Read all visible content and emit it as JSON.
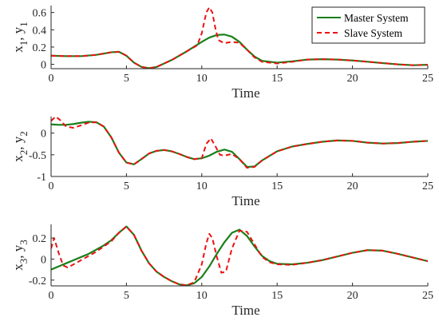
{
  "colors": {
    "master": "#1a7f1a",
    "slave": "#ee1111",
    "axis": "#262626",
    "background": "#ffffff"
  },
  "legend": {
    "placement": "top-right of first subplot",
    "entries": [
      {
        "label": "Master System",
        "color": "#1a7f1a",
        "style": "solid"
      },
      {
        "label": "Slave System",
        "color": "#ee1111",
        "style": "dashed"
      }
    ]
  },
  "chart_data": [
    {
      "type": "line",
      "ylabel": "x1, y1",
      "ylabel_main": [
        "x",
        "y"
      ],
      "ylabel_sub": [
        "1",
        "1"
      ],
      "xlabel": "Time",
      "xlim": [
        0,
        25
      ],
      "ylim": [
        -0.05,
        0.68
      ],
      "xticks": [
        0,
        5,
        10,
        15,
        20,
        25
      ],
      "yticks": [
        0,
        0.2,
        0.4,
        0.6
      ],
      "ytick_labels": [
        "0",
        "0.2",
        "0.4",
        "0.6"
      ],
      "grid": false,
      "series": [
        {
          "name": "Master System",
          "color": "#1a7f1a",
          "dash": "solid",
          "x": [
            0,
            1,
            2,
            3,
            4,
            4.5,
            5,
            5.5,
            6,
            6.5,
            7,
            8,
            9,
            10,
            10.5,
            11,
            11.5,
            12,
            12.5,
            13,
            13.5,
            14,
            15,
            16,
            17,
            18,
            19,
            20,
            21,
            22,
            23,
            24,
            25
          ],
          "y": [
            0.1,
            0.095,
            0.095,
            0.11,
            0.14,
            0.145,
            0.1,
            0.02,
            -0.03,
            -0.045,
            -0.03,
            0.05,
            0.15,
            0.26,
            0.31,
            0.34,
            0.345,
            0.32,
            0.26,
            0.17,
            0.09,
            0.04,
            0.02,
            0.035,
            0.055,
            0.06,
            0.055,
            0.045,
            0.03,
            0.015,
            0.0,
            -0.01,
            -0.005
          ]
        },
        {
          "name": "Slave System",
          "color": "#ee1111",
          "dash": "dashed",
          "x": [
            0,
            1,
            2,
            3,
            4,
            4.5,
            5,
            5.5,
            6,
            6.5,
            7,
            8,
            9,
            9.7,
            10,
            10.3,
            10.5,
            10.7,
            10.9,
            11.1,
            11.5,
            12,
            12.5,
            13,
            13.5,
            14,
            15,
            16,
            17,
            18,
            19,
            20,
            21,
            22,
            23,
            24,
            25
          ],
          "y": [
            0.1,
            0.095,
            0.095,
            0.11,
            0.14,
            0.145,
            0.1,
            0.02,
            -0.03,
            -0.045,
            -0.03,
            0.05,
            0.15,
            0.22,
            0.36,
            0.6,
            0.66,
            0.6,
            0.42,
            0.28,
            0.245,
            0.26,
            0.25,
            0.17,
            0.08,
            0.03,
            0.01,
            0.03,
            0.055,
            0.06,
            0.055,
            0.045,
            0.03,
            0.015,
            0.0,
            -0.01,
            -0.005
          ]
        }
      ]
    },
    {
      "type": "line",
      "ylabel": "x2, y2",
      "ylabel_main": [
        "x",
        "y"
      ],
      "ylabel_sub": [
        "2",
        "2"
      ],
      "xlabel": "Time",
      "xlim": [
        0,
        25
      ],
      "ylim": [
        -1,
        0.38
      ],
      "xticks": [
        0,
        5,
        10,
        15,
        20,
        25
      ],
      "yticks": [
        0,
        -0.5,
        -1
      ],
      "ytick_labels": [
        "0",
        "-0.5",
        "-1"
      ],
      "grid": false,
      "series": [
        {
          "name": "Master System",
          "color": "#1a7f1a",
          "dash": "solid",
          "x": [
            0,
            0.5,
            1,
            1.5,
            2,
            2.5,
            3,
            3.5,
            4,
            4.5,
            5,
            5.5,
            6,
            6.5,
            7,
            7.5,
            8,
            8.5,
            9,
            9.5,
            10,
            10.5,
            11,
            11.5,
            12,
            12.5,
            13,
            13.5,
            14,
            15,
            16,
            17,
            18,
            19,
            20,
            21,
            22,
            23,
            24,
            25
          ],
          "y": [
            0.2,
            0.19,
            0.19,
            0.21,
            0.24,
            0.26,
            0.25,
            0.15,
            -0.1,
            -0.45,
            -0.68,
            -0.72,
            -0.6,
            -0.47,
            -0.41,
            -0.39,
            -0.42,
            -0.48,
            -0.55,
            -0.6,
            -0.58,
            -0.52,
            -0.43,
            -0.38,
            -0.43,
            -0.6,
            -0.78,
            -0.77,
            -0.63,
            -0.42,
            -0.31,
            -0.25,
            -0.2,
            -0.17,
            -0.18,
            -0.22,
            -0.24,
            -0.23,
            -0.2,
            -0.18
          ]
        },
        {
          "name": "Slave System",
          "color": "#ee1111",
          "dash": "dashed",
          "x": [
            0,
            0.3,
            0.6,
            1,
            1.5,
            2,
            2.5,
            3,
            3.5,
            4,
            4.5,
            5,
            5.5,
            6,
            6.5,
            7,
            7.5,
            8,
            8.5,
            9,
            9.5,
            10,
            10.3,
            10.6,
            10.9,
            11.2,
            11.5,
            12,
            12.5,
            13,
            13.5,
            14,
            15,
            16,
            17,
            18,
            19,
            20,
            21,
            22,
            23,
            24,
            25
          ],
          "y": [
            0.28,
            0.38,
            0.3,
            0.15,
            0.12,
            0.18,
            0.24,
            0.25,
            0.15,
            -0.1,
            -0.45,
            -0.68,
            -0.72,
            -0.6,
            -0.47,
            -0.41,
            -0.39,
            -0.42,
            -0.48,
            -0.55,
            -0.6,
            -0.58,
            -0.25,
            -0.12,
            -0.3,
            -0.5,
            -0.52,
            -0.48,
            -0.6,
            -0.8,
            -0.78,
            -0.63,
            -0.42,
            -0.31,
            -0.25,
            -0.2,
            -0.17,
            -0.18,
            -0.22,
            -0.24,
            -0.23,
            -0.2,
            -0.18
          ]
        }
      ]
    },
    {
      "type": "line",
      "ylabel": "x3, y3",
      "ylabel_main": [
        "x",
        "y"
      ],
      "ylabel_sub": [
        "3",
        "3"
      ],
      "xlabel": "Time",
      "xlim": [
        0,
        25
      ],
      "ylim": [
        -0.255,
        0.33
      ],
      "xticks": [
        0,
        5,
        10,
        15,
        20,
        25
      ],
      "yticks": [
        0.2,
        0,
        -0.2
      ],
      "ytick_labels": [
        "0.2",
        "0",
        "-0.2"
      ],
      "grid": false,
      "series": [
        {
          "name": "Master System",
          "color": "#1a7f1a",
          "dash": "solid",
          "x": [
            0,
            0.5,
            1,
            1.5,
            2,
            2.5,
            3,
            3.5,
            4,
            4.5,
            5,
            5.5,
            6,
            6.5,
            7,
            7.5,
            8,
            8.5,
            9,
            9.5,
            10,
            10.5,
            11,
            11.5,
            12,
            12.5,
            13,
            13.5,
            14,
            14.5,
            15,
            16,
            17,
            18,
            19,
            20,
            21,
            22,
            23,
            24,
            25
          ],
          "y": [
            -0.1,
            -0.07,
            -0.04,
            -0.01,
            0.02,
            0.05,
            0.09,
            0.13,
            0.18,
            0.25,
            0.31,
            0.23,
            0.08,
            -0.04,
            -0.12,
            -0.17,
            -0.21,
            -0.24,
            -0.25,
            -0.23,
            -0.17,
            -0.07,
            0.05,
            0.16,
            0.25,
            0.28,
            0.22,
            0.12,
            0.03,
            -0.02,
            -0.045,
            -0.05,
            -0.035,
            -0.01,
            0.025,
            0.06,
            0.085,
            0.08,
            0.05,
            0.015,
            -0.02
          ]
        },
        {
          "name": "Slave System",
          "color": "#ee1111",
          "dash": "dashed",
          "x": [
            0,
            0.2,
            0.5,
            0.8,
            1.1,
            1.5,
            2,
            2.5,
            3,
            3.5,
            4,
            4.5,
            5,
            5.5,
            6,
            6.5,
            7,
            7.5,
            8,
            8.5,
            9,
            9.5,
            10,
            10.3,
            10.5,
            10.7,
            11,
            11.3,
            11.6,
            12,
            12.5,
            13,
            13.5,
            14,
            14.5,
            15,
            16,
            17,
            18,
            19,
            20,
            21,
            22,
            23,
            24,
            25
          ],
          "y": [
            0.1,
            0.2,
            0.06,
            -0.06,
            -0.08,
            -0.05,
            -0.01,
            0.03,
            0.07,
            0.12,
            0.17,
            0.25,
            0.31,
            0.23,
            0.08,
            -0.04,
            -0.12,
            -0.17,
            -0.21,
            -0.24,
            -0.25,
            -0.22,
            -0.05,
            0.15,
            0.24,
            0.2,
            0.02,
            -0.13,
            -0.12,
            0.1,
            0.27,
            0.26,
            0.14,
            0.02,
            -0.03,
            -0.05,
            -0.055,
            -0.035,
            -0.01,
            0.025,
            0.06,
            0.085,
            0.08,
            0.05,
            0.015,
            -0.02
          ]
        }
      ]
    }
  ]
}
